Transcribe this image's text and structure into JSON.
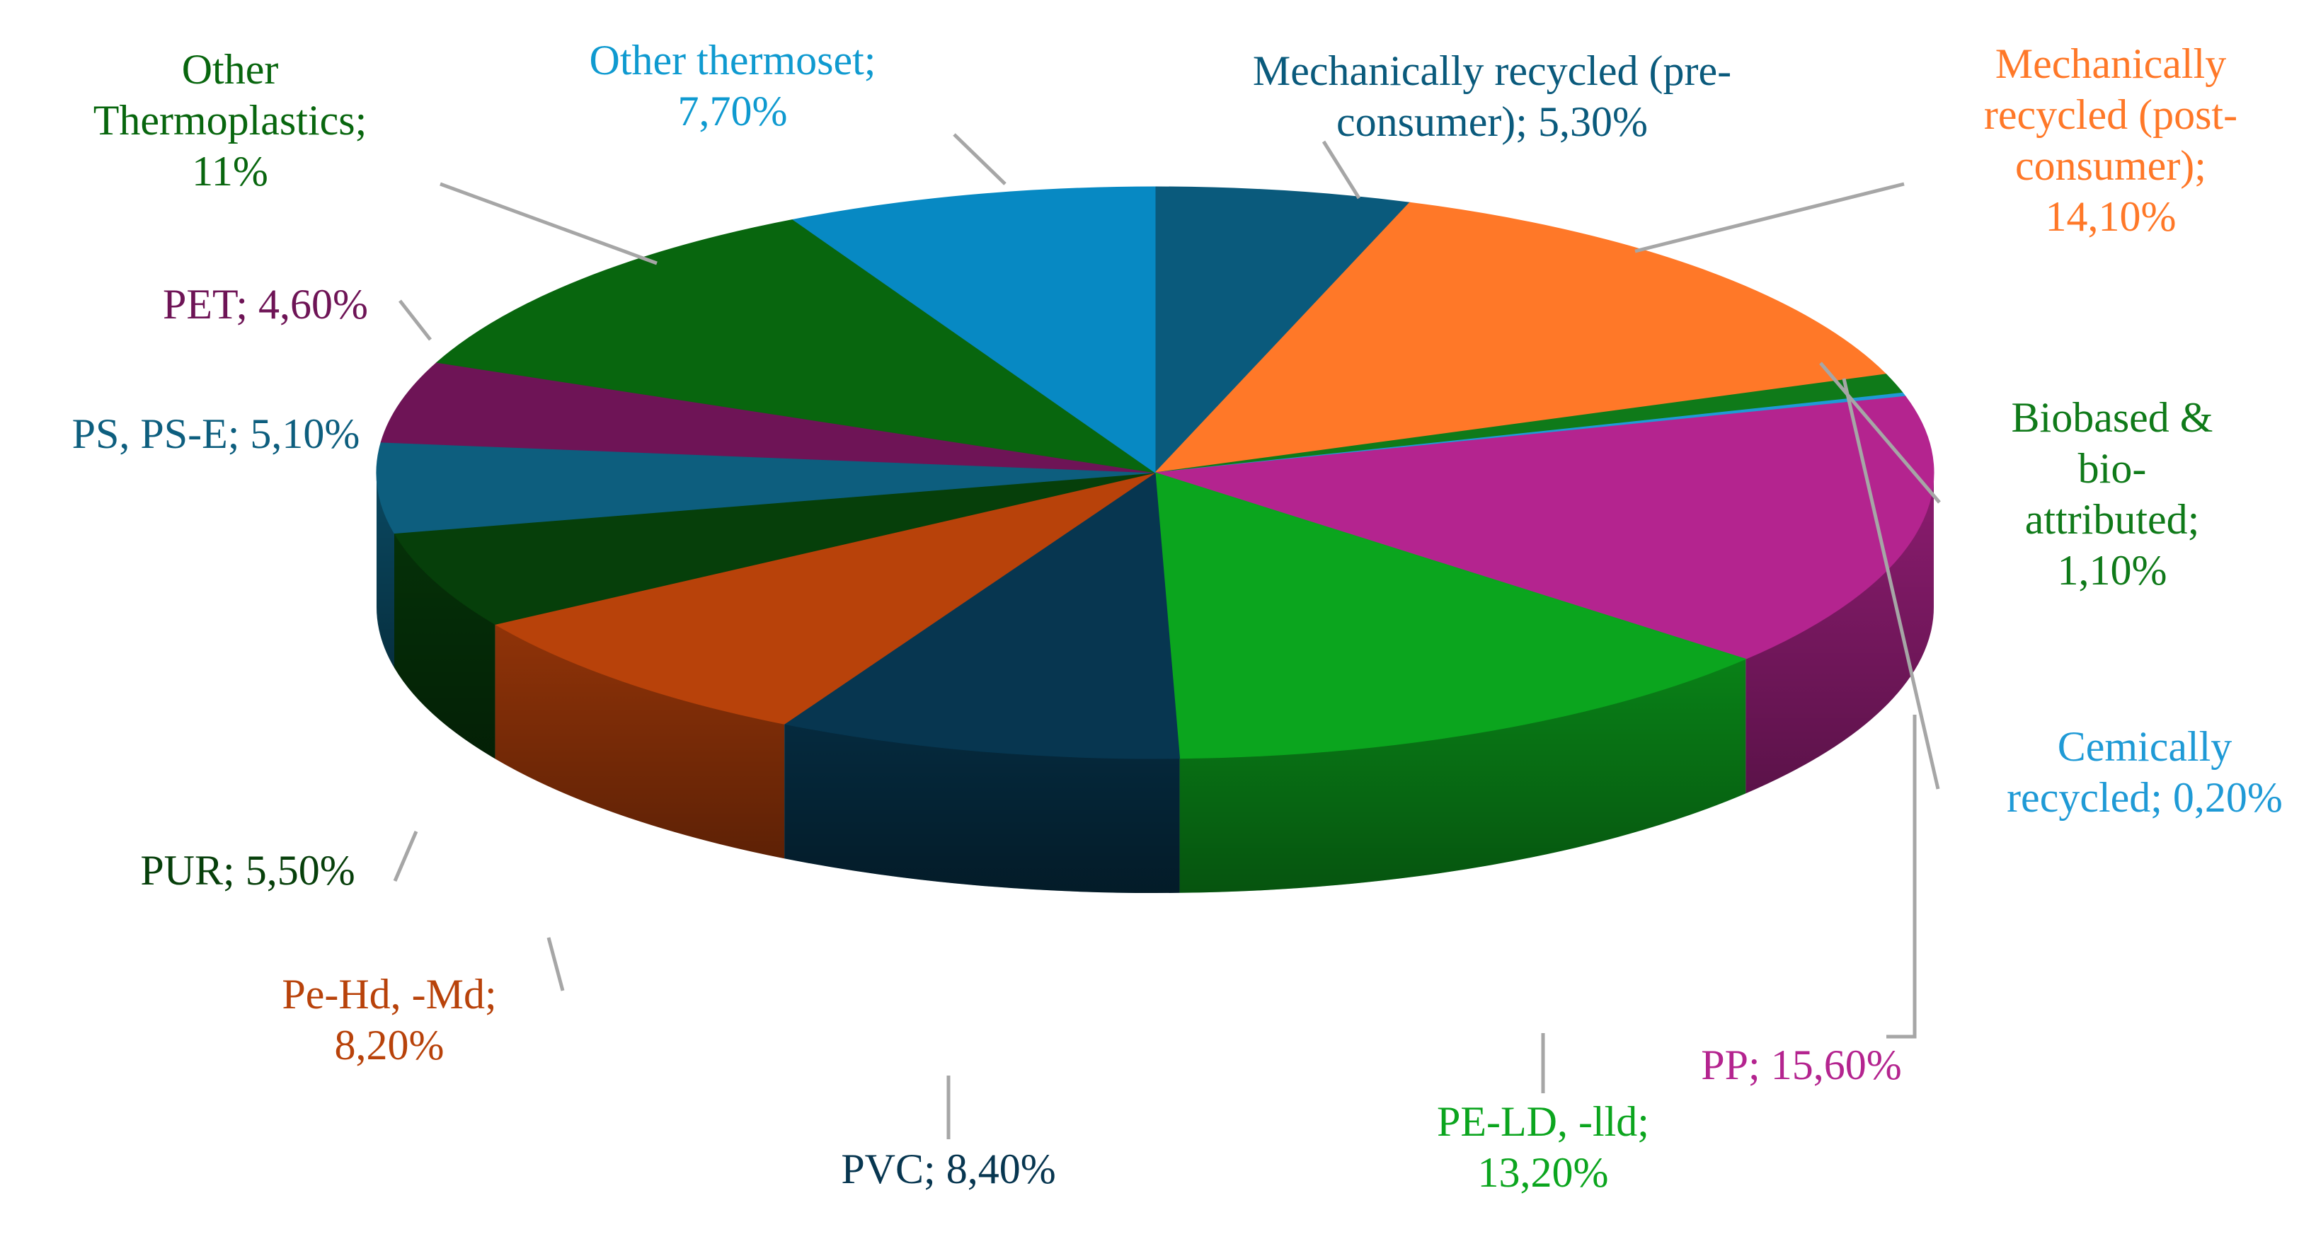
{
  "chart_data": {
    "type": "pie",
    "variant": "3d",
    "start_angle_deg": 0,
    "direction": "clockwise",
    "value_unit": "%",
    "legend": "none",
    "slices": [
      {
        "id": "mech-pre",
        "label": "Mechanically recycled (pre-consumer); 5,30%",
        "label_lines": [
          "Mechanically recycled (pre-",
          "consumer); 5,30%"
        ],
        "category": "Mechanically recycled (pre-consumer)",
        "value": 5.3,
        "color": "#0A5A7C",
        "label_color": "#0A5A7C"
      },
      {
        "id": "mech-post",
        "label": "Mechanically recycled (post-consumer); 14,10%",
        "label_lines": [
          "Mechanically",
          "recycled (post-",
          "consumer);",
          "14,10%"
        ],
        "category": "Mechanically recycled (post-consumer)",
        "value": 14.1,
        "color": "#FF7828",
        "label_color": "#FF7828"
      },
      {
        "id": "biobased",
        "label": "Biobased & bio-attributed; 1,10%",
        "label_lines": [
          "Biobased &",
          "bio-",
          "attributed;",
          "1,10%"
        ],
        "category": "Biobased & bio-attributed",
        "value": 1.1,
        "color": "#0F7A19",
        "label_color": "#0F7A19"
      },
      {
        "id": "chem",
        "label": "Cemically recycled; 0,20%",
        "label_lines": [
          "Cemically",
          "recycled; 0,20%"
        ],
        "category": "Cemically recycled",
        "value": 0.2,
        "color": "#1F9AD6",
        "label_color": "#1F9AD6"
      },
      {
        "id": "pp",
        "label": "PP; 15,60%",
        "label_lines": [
          "PP; 15,60%"
        ],
        "category": "PP",
        "value": 15.6,
        "color": "#B4248F",
        "label_color": "#B4248F"
      },
      {
        "id": "pe-ld",
        "label": "PE-LD, -lld; 13,20%",
        "label_lines": [
          "PE-LD, -lld;",
          "13,20%"
        ],
        "category": "PE-LD, -lld",
        "value": 13.2,
        "color": "#0BA51E",
        "label_color": "#0BA51E"
      },
      {
        "id": "pvc",
        "label": "PVC; 8,40%",
        "label_lines": [
          "PVC; 8,40%"
        ],
        "category": "PVC",
        "value": 8.4,
        "color": "#073650",
        "label_color": "#073650"
      },
      {
        "id": "pe-hd",
        "label": "Pe-Hd, -Md; 8,20%",
        "label_lines": [
          "Pe-Hd, -Md;",
          "8,20%"
        ],
        "category": "Pe-Hd, -Md",
        "value": 8.2,
        "color": "#B8420A",
        "label_color": "#B8420A"
      },
      {
        "id": "pur",
        "label": "PUR; 5,50%",
        "label_lines": [
          "PUR; 5,50%"
        ],
        "category": "PUR",
        "value": 5.5,
        "color": "#063F0A",
        "label_color": "#063F0A"
      },
      {
        "id": "ps",
        "label": "PS, PS-E; 5,10%",
        "label_lines": [
          "PS, PS-E; 5,10%"
        ],
        "category": "PS, PS-E",
        "value": 5.1,
        "color": "#0D5E7E",
        "label_color": "#0D5E7E"
      },
      {
        "id": "pet",
        "label": "PET; 4,60%",
        "label_lines": [
          "PET; 4,60%"
        ],
        "category": "PET",
        "value": 4.6,
        "color": "#6E1456",
        "label_color": "#6E1456"
      },
      {
        "id": "other-tp",
        "label": "Other Thermoplastics; 11%",
        "label_lines": [
          "Other",
          "Thermoplastics;",
          "11%"
        ],
        "category": "Other Thermoplastics",
        "value": 11,
        "color": "#08660E",
        "label_color": "#08660E"
      },
      {
        "id": "other-ts",
        "label": "Other thermoset; 7,70%",
        "label_lines": [
          "Other thermoset;",
          "7,70%"
        ],
        "category": "Other thermoset",
        "value": 7.7,
        "color": "#0789C3",
        "label_color": "#0F9AD0"
      }
    ]
  }
}
